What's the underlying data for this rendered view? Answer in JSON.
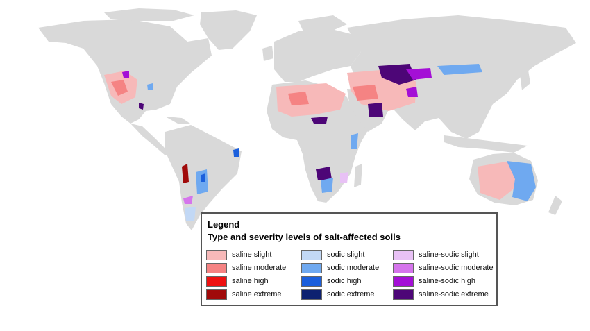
{
  "legend": {
    "heading": "Legend",
    "subtitle": "Type and severity levels of salt-affected soils",
    "columns": [
      [
        {
          "label": "saline slight",
          "color": "#f7b9b9"
        },
        {
          "label": "saline moderate",
          "color": "#f58383"
        },
        {
          "label": "saline high",
          "color": "#ee1111"
        },
        {
          "label": "saline extreme",
          "color": "#a00a0a"
        }
      ],
      [
        {
          "label": "sodic slight",
          "color": "#c2d8f5"
        },
        {
          "label": "sodic moderate",
          "color": "#6fa9f0"
        },
        {
          "label": "sodic high",
          "color": "#1b5fdc"
        },
        {
          "label": "sodic extreme",
          "color": "#0d2170"
        }
      ],
      [
        {
          "label": "saline-sodic slight",
          "color": "#e8c1f5"
        },
        {
          "label": "saline-sodic moderate",
          "color": "#d575ec"
        },
        {
          "label": "saline-sodic high",
          "color": "#a40fd6"
        },
        {
          "label": "saline-sodic extreme",
          "color": "#4d0677"
        }
      ]
    ]
  },
  "colors": {
    "land": "#d9d9d9",
    "background": "#ffffff"
  }
}
